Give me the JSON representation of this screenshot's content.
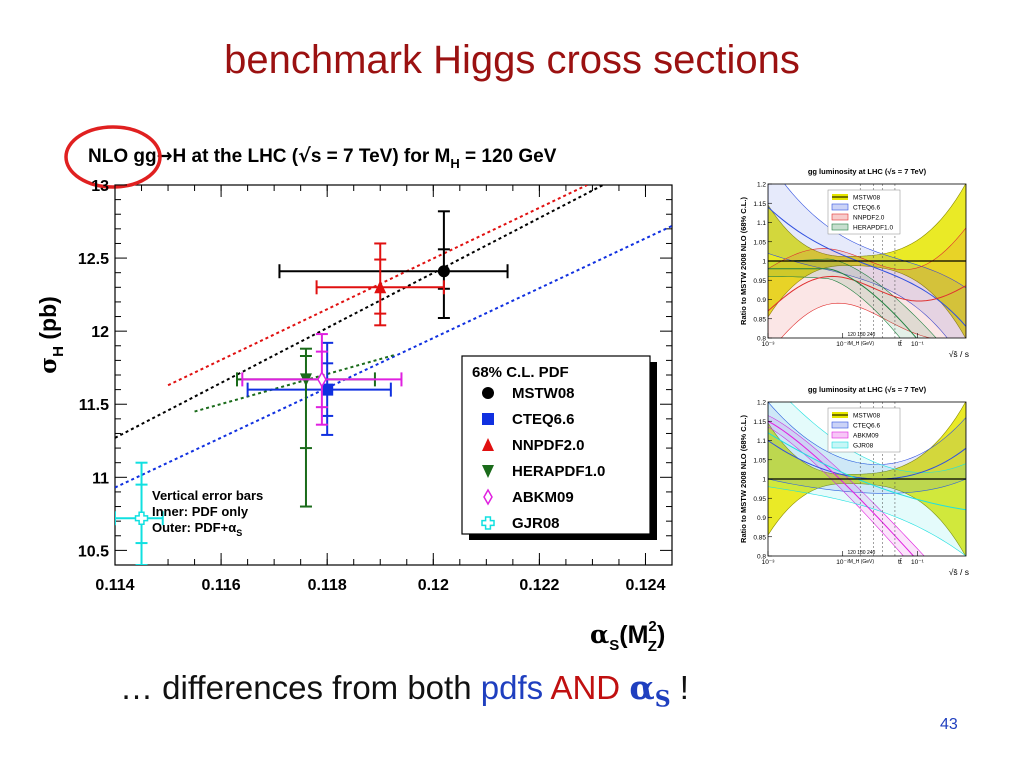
{
  "slide": {
    "title": "benchmark Higgs cross sections",
    "bottom_text": {
      "part1": "… differences from both ",
      "part2": "pdfs",
      "part3": "AND",
      "alpha": "α",
      "alpha_sub": "S",
      "part4": "!"
    },
    "page_number": "43",
    "highlight_color": "#e02020"
  },
  "chart_data": [
    {
      "type": "scatter",
      "title": "NLO gg→H at the LHC (√s = 7 TeV) for M_H = 120 GeV",
      "title_parts": {
        "pre": "NLO gg",
        "arrow": "→",
        "mid": "H at the LHC (",
        "sqrt": "√",
        "mid2": "s = 7 TeV) for M",
        "sub": "H",
        "post": " = 120 GeV"
      },
      "ylabel_parts": {
        "sigma": "σ",
        "sub": "H",
        "unit": "(pb)"
      },
      "xlabel_parts": {
        "alpha": "α",
        "sub": "S",
        "open": "(M",
        "sup": "2",
        "sub2": "Z",
        "close": ")"
      },
      "xlim": [
        0.114,
        0.1245
      ],
      "ylim": [
        10.4,
        13.0
      ],
      "x_ticks": [
        "0.114",
        "0.116",
        "0.118",
        "0.12",
        "0.122",
        "0.124"
      ],
      "y_ticks": [
        "10.5",
        "11",
        "11.5",
        "12",
        "12.5",
        "13"
      ],
      "legend_title": "68% C.L. PDF",
      "legend_position": "bottom-right",
      "series": [
        {
          "name": "MSTW08",
          "color": "#000000",
          "marker": "circle",
          "x": 0.1202,
          "y": 12.41,
          "x_err": [
            0.1171,
            0.1214
          ],
          "y_inner": [
            12.29,
            12.56
          ],
          "y_outer": [
            12.09,
            12.82
          ],
          "line": {
            "x": [
              0.114,
              0.1232
            ],
            "y": [
              11.27,
              13.0
            ]
          }
        },
        {
          "name": "CTEQ6.6",
          "color": "#1030e0",
          "marker": "square",
          "x": 0.118,
          "y": 11.6,
          "x_err": [
            0.1165,
            0.1192
          ],
          "y_inner": [
            11.42,
            11.78
          ],
          "y_outer": [
            11.29,
            11.92
          ],
          "line": {
            "x": [
              0.114,
              0.1245
            ],
            "y": [
              10.93,
              12.72
            ]
          }
        },
        {
          "name": "NNPDF2.0",
          "color": "#e01010",
          "marker": "triangle-up",
          "x": 0.119,
          "y": 12.3,
          "x_err": [
            0.1178,
            0.1202
          ],
          "y_inner": [
            12.12,
            12.49
          ],
          "y_outer": [
            12.04,
            12.6
          ],
          "line": {
            "x": [
              0.115,
              0.1229
            ],
            "y": [
              11.63,
              13.0
            ]
          }
        },
        {
          "name": "HERAPDF1.0",
          "color": "#1a6b1a",
          "marker": "triangle-down",
          "x": 0.1176,
          "y": 11.67,
          "x_err": [
            0.1163,
            0.1189
          ],
          "y_inner": [
            11.2,
            11.83
          ],
          "y_outer": [
            10.8,
            11.88
          ],
          "line": {
            "x": [
              0.1155,
              0.1193
            ],
            "y": [
              11.45,
              11.84
            ]
          }
        },
        {
          "name": "ABKM09",
          "color": "#e020e0",
          "marker": "diamond-open",
          "x": 0.1179,
          "y": 11.67,
          "x_err": [
            0.1164,
            0.1194
          ],
          "y_inner": [
            11.48,
            11.86
          ],
          "y_outer": [
            11.36,
            11.98
          ],
          "line": null
        },
        {
          "name": "GJR08",
          "color": "#10e0e0",
          "marker": "cross-open",
          "x": 0.1145,
          "y": 10.72,
          "x_err": [
            0.114,
            0.1149
          ],
          "y_inner": [
            10.55,
            10.95
          ],
          "y_outer": [
            10.4,
            11.1
          ],
          "line": null
        }
      ],
      "annotation": {
        "line1": "Vertical error bars",
        "line2": "Inner: PDF only",
        "line3": "Outer: PDF+α",
        "line3_sub": "S"
      }
    },
    {
      "type": "line",
      "title": "gg luminosity at LHC (√s = 7 TeV)",
      "ylabel": "Ratio to MSTW 2008 NLO (68% C.L.)",
      "xlabel": "√ŝ / s",
      "x_scale": "log",
      "x_ticks": [
        "10⁻³",
        "10⁻²",
        "10⁻¹"
      ],
      "y_ticks": [
        "0.8",
        "0.85",
        "0.9",
        "0.95",
        "1",
        "1.05",
        "1.1",
        "1.15",
        "1.2"
      ],
      "ylim": [
        0.8,
        1.2
      ],
      "mass_marks": [
        "120",
        "180",
        "240"
      ],
      "mass_label": "M_H (GeV)",
      "ttbar_label": "tt̄",
      "legend_position": "top-right",
      "series": [
        {
          "name": "MSTW08",
          "color": "#e6e600",
          "center": "#000000"
        },
        {
          "name": "CTEQ6.6",
          "color": "#3050e0"
        },
        {
          "name": "NNPDF2.0",
          "color": "#e03030"
        },
        {
          "name": "HERAPDF1.0",
          "color": "#208040"
        }
      ]
    },
    {
      "type": "line",
      "title": "gg luminosity at LHC (√s = 7 TeV)",
      "ylabel": "Ratio to MSTW 2008 NLO (68% C.L.)",
      "xlabel": "√ŝ / s",
      "x_scale": "log",
      "x_ticks": [
        "10⁻³",
        "10⁻²",
        "10⁻¹"
      ],
      "y_ticks": [
        "0.8",
        "0.85",
        "0.9",
        "0.95",
        "1",
        "1.05",
        "1.1",
        "1.15",
        "1.2"
      ],
      "ylim": [
        0.8,
        1.2
      ],
      "mass_marks": [
        "120",
        "180",
        "240"
      ],
      "mass_label": "M_H (GeV)",
      "ttbar_label": "tt̄",
      "legend_position": "top-right",
      "series": [
        {
          "name": "MSTW08",
          "color": "#e6e600",
          "center": "#000000"
        },
        {
          "name": "CTEQ6.6",
          "color": "#3050e0"
        },
        {
          "name": "ABKM09",
          "color": "#e020e0"
        },
        {
          "name": "GJR08",
          "color": "#20e0e0"
        }
      ]
    }
  ]
}
